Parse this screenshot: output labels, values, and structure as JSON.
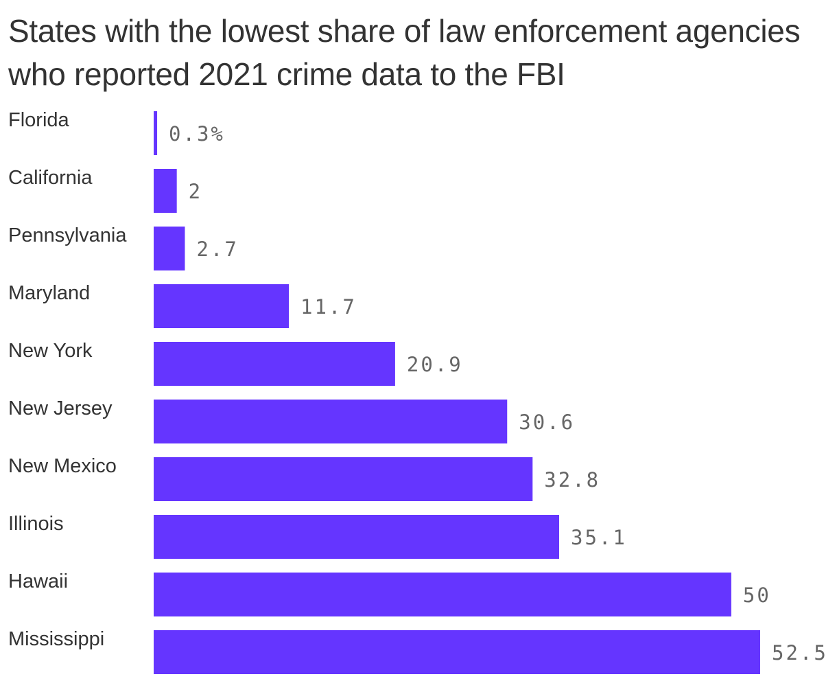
{
  "chart_data": {
    "type": "bar",
    "orientation": "horizontal",
    "title": "States with the lowest share of law enforcement agencies who reported 2021 crime data to the FBI",
    "categories": [
      "Florida",
      "California",
      "Pennsylvania",
      "Maryland",
      "New York",
      "New Jersey",
      "New Mexico",
      "Illinois",
      "Hawaii",
      "Mississippi"
    ],
    "values": [
      0.3,
      2,
      2.7,
      11.7,
      20.9,
      30.6,
      32.8,
      35.1,
      50,
      52.5
    ],
    "value_labels": [
      "0.3%",
      "2",
      "2.7",
      "11.7",
      "20.9",
      "30.6",
      "32.8",
      "35.1",
      "50",
      "52.5"
    ],
    "xlim": [
      0,
      52.5
    ],
    "grid": false,
    "legend": "none",
    "colors": {
      "bar": "#6535ff",
      "category_label": "#333333",
      "value_label": "#666666",
      "title": "#333333"
    }
  }
}
